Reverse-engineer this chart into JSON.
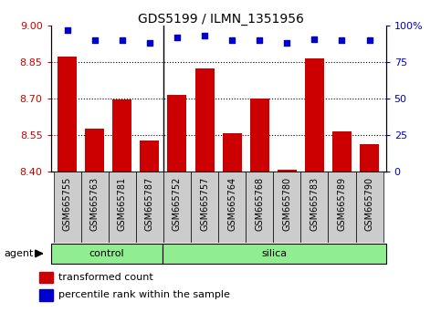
{
  "title": "GDS5199 / ILMN_1351956",
  "samples": [
    "GSM665755",
    "GSM665763",
    "GSM665781",
    "GSM665787",
    "GSM665752",
    "GSM665757",
    "GSM665764",
    "GSM665768",
    "GSM665780",
    "GSM665783",
    "GSM665789",
    "GSM665790"
  ],
  "transformed_count": [
    8.875,
    8.575,
    8.695,
    8.525,
    8.715,
    8.825,
    8.555,
    8.7,
    8.405,
    8.865,
    8.565,
    8.51
  ],
  "percentile_rank": [
    97,
    90,
    90,
    88,
    92,
    93,
    90,
    90,
    88,
    91,
    90,
    90
  ],
  "control_count": 4,
  "silica_count": 8,
  "ylim_left": [
    8.4,
    9.0
  ],
  "ylim_right": [
    0,
    100
  ],
  "yticks_left": [
    8.4,
    8.55,
    8.7,
    8.85,
    9.0
  ],
  "yticks_right": [
    0,
    25,
    50,
    75,
    100
  ],
  "bar_color": "#cc0000",
  "dot_color": "#0000cc",
  "control_color": "#90ee90",
  "silica_color": "#90ee90",
  "bg_gray": "#cccccc",
  "agent_label": "agent",
  "control_label": "control",
  "silica_label": "silica",
  "legend_bar_label": "transformed count",
  "legend_dot_label": "percentile rank within the sample"
}
